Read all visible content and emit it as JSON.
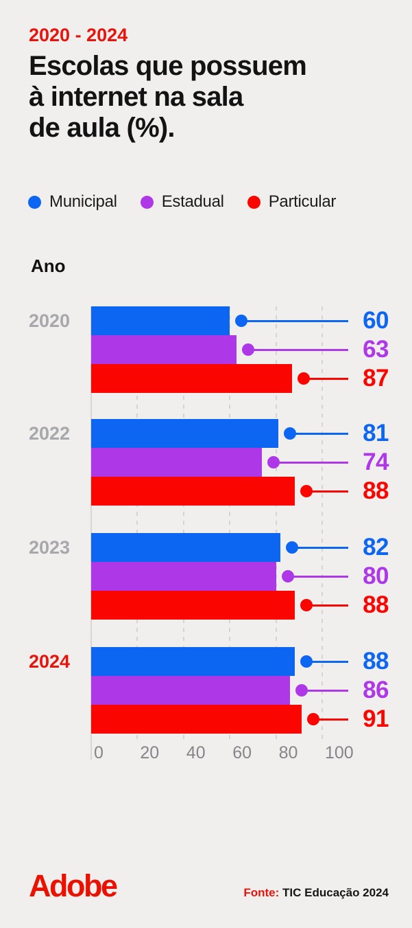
{
  "colors": {
    "background": "#f0efed",
    "accent_red": "#e8140c",
    "adobe_red": "#eb1000",
    "year_gray": "#a8a8ac",
    "axis_gray": "#85858a",
    "municipal_blue": "#0d66f2",
    "estadual_purple": "#ae38e8",
    "particular_red": "#fa0500"
  },
  "header": {
    "period": "2020 - 2024",
    "title_lines": [
      "Escolas que possuem",
      "à internet na sala",
      "de aula (%)."
    ]
  },
  "chart_data": {
    "type": "bar",
    "orientation": "horizontal",
    "group_axis_label": "Ano",
    "categories": [
      "2020",
      "2022",
      "2023",
      "2024"
    ],
    "series": [
      {
        "name": "Municipal",
        "color": "#0d66f2",
        "values": [
          60,
          81,
          82,
          88
        ]
      },
      {
        "name": "Estadual",
        "color": "#ae38e8",
        "values": [
          63,
          74,
          80,
          86
        ]
      },
      {
        "name": "Particular",
        "color": "#fa0500",
        "values": [
          87,
          88,
          88,
          91
        ]
      }
    ],
    "xlim": [
      0,
      100
    ],
    "xticks": [
      0,
      20,
      40,
      60,
      80,
      100
    ],
    "grid": "dashed-vertical",
    "highlight_category": "2024"
  },
  "footer": {
    "brand": "Adobe",
    "source_label": "Fonte:",
    "source_text": "TIC Educação 2024"
  }
}
